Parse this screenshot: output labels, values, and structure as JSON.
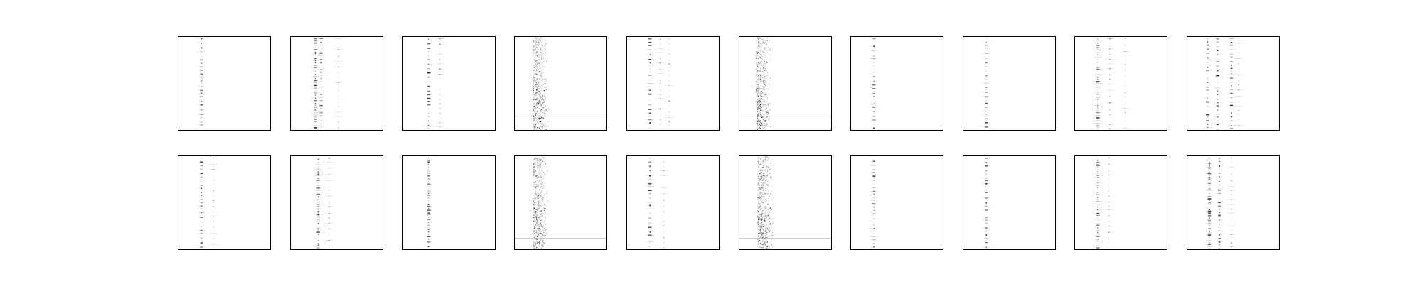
{
  "figure": {
    "rows": [
      {
        "panels": [
          {
            "spectra": [
              {
                "x": 0.25,
                "pattern": "sparse"
              }
            ]
          },
          {
            "spectra": [
              {
                "x": 0.27,
                "pattern": "dense"
              },
              {
                "x": 0.33,
                "pattern": "sparse"
              },
              {
                "x": 0.52,
                "pattern": "faint"
              }
            ]
          },
          {
            "spectra": [
              {
                "x": 0.28,
                "pattern": "sparse"
              },
              {
                "x": 0.4,
                "pattern": "faint"
              }
            ]
          },
          {
            "spectra": [
              {
                "x": 0.22,
                "pattern": "band"
              }
            ],
            "artifact_line_y": 0.85
          },
          {
            "spectra": [
              {
                "x": 0.25,
                "pattern": "sparse"
              },
              {
                "x": 0.36,
                "pattern": "faint"
              },
              {
                "x": 0.46,
                "pattern": "faint"
              }
            ]
          },
          {
            "spectra": [
              {
                "x": 0.2,
                "pattern": "band"
              }
            ],
            "artifact_line_y": 0.85
          },
          {
            "spectra": [
              {
                "x": 0.25,
                "pattern": "sparse"
              }
            ]
          },
          {
            "spectra": [
              {
                "x": 0.25,
                "pattern": "sparse"
              }
            ]
          },
          {
            "spectra": [
              {
                "x": 0.25,
                "pattern": "dense"
              },
              {
                "x": 0.38,
                "pattern": "faint"
              },
              {
                "x": 0.55,
                "pattern": "faint"
              }
            ]
          },
          {
            "spectra": [
              {
                "x": 0.22,
                "pattern": "sparse"
              },
              {
                "x": 0.33,
                "pattern": "sparse"
              },
              {
                "x": 0.48,
                "pattern": "sparse"
              },
              {
                "x": 0.56,
                "pattern": "faint"
              }
            ]
          }
        ]
      },
      {
        "panels": [
          {
            "spectra": [
              {
                "x": 0.25,
                "pattern": "sparse"
              },
              {
                "x": 0.38,
                "pattern": "faint"
              }
            ]
          },
          {
            "spectra": [
              {
                "x": 0.3,
                "pattern": "dense"
              },
              {
                "x": 0.42,
                "pattern": "faint"
              }
            ]
          },
          {
            "spectra": [
              {
                "x": 0.28,
                "pattern": "dense"
              }
            ]
          },
          {
            "spectra": [
              {
                "x": 0.22,
                "pattern": "band"
              }
            ],
            "artifact_line_y": 0.88
          },
          {
            "spectra": [
              {
                "x": 0.25,
                "pattern": "sparse"
              },
              {
                "x": 0.4,
                "pattern": "faint"
              }
            ]
          },
          {
            "spectra": [
              {
                "x": 0.22,
                "pattern": "band"
              }
            ],
            "artifact_line_y": 0.88
          },
          {
            "spectra": [
              {
                "x": 0.25,
                "pattern": "sparse"
              }
            ]
          },
          {
            "spectra": [
              {
                "x": 0.25,
                "pattern": "sparse"
              }
            ]
          },
          {
            "spectra": [
              {
                "x": 0.25,
                "pattern": "dense"
              },
              {
                "x": 0.37,
                "pattern": "faint"
              }
            ]
          },
          {
            "spectra": [
              {
                "x": 0.24,
                "pattern": "dense"
              },
              {
                "x": 0.35,
                "pattern": "sparse"
              },
              {
                "x": 0.48,
                "pattern": "faint"
              }
            ]
          }
        ]
      }
    ]
  }
}
